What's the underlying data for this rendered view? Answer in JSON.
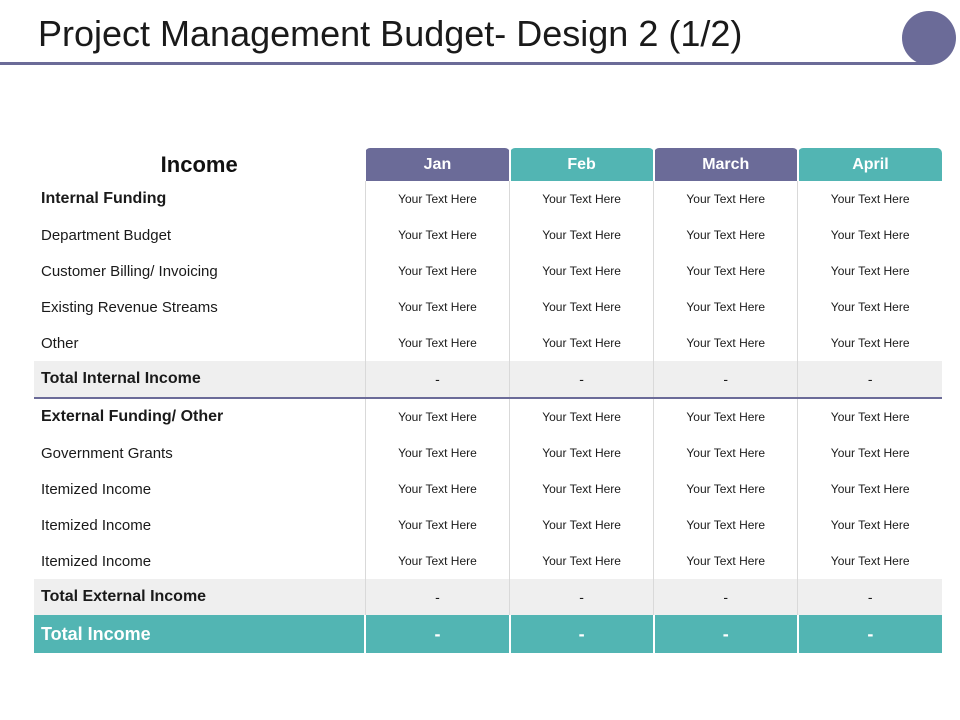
{
  "slide": {
    "title": "Project Management Budget- Design 2 (1/2)"
  },
  "table": {
    "header_label": "Income",
    "months": [
      "Jan",
      "Feb",
      "March",
      "April"
    ],
    "rows": [
      {
        "label": "Internal Funding",
        "values": [
          "Your Text Here",
          "Your Text Here",
          "Your Text Here",
          "Your Text Here"
        ]
      },
      {
        "label": "Department Budget",
        "values": [
          "Your Text Here",
          "Your Text Here",
          "Your Text Here",
          "Your Text Here"
        ]
      },
      {
        "label": "Customer Billing/ Invoicing",
        "values": [
          "Your Text Here",
          "Your Text Here",
          "Your Text Here",
          "Your Text Here"
        ]
      },
      {
        "label": "Existing Revenue Streams",
        "values": [
          "Your Text Here",
          "Your Text Here",
          "Your Text Here",
          "Your Text Here"
        ]
      },
      {
        "label": "Other",
        "values": [
          "Your Text Here",
          "Your Text Here",
          "Your Text Here",
          "Your Text Here"
        ]
      },
      {
        "label": "Total Internal Income",
        "values": [
          "-",
          "-",
          "-",
          "-"
        ]
      },
      {
        "label": "External Funding/ Other",
        "values": [
          "Your Text Here",
          "Your Text Here",
          "Your Text Here",
          "Your Text Here"
        ]
      },
      {
        "label": "Government Grants",
        "values": [
          "Your Text Here",
          "Your Text Here",
          "Your Text Here",
          "Your Text Here"
        ]
      },
      {
        "label": "Itemized Income",
        "values": [
          "Your Text Here",
          "Your Text Here",
          "Your Text Here",
          "Your Text Here"
        ]
      },
      {
        "label": "Itemized Income",
        "values": [
          "Your Text Here",
          "Your Text Here",
          "Your Text Here",
          "Your Text Here"
        ]
      },
      {
        "label": "Itemized Income",
        "values": [
          "Your Text Here",
          "Your Text Here",
          "Your Text Here",
          "Your Text Here"
        ]
      },
      {
        "label": "Total External Income",
        "values": [
          "-",
          "-",
          "-",
          "-"
        ]
      }
    ],
    "grand_total": {
      "label": "Total Income",
      "values": [
        "-",
        "-",
        "-",
        "-"
      ]
    }
  },
  "colors": {
    "purple": "#6b6b98",
    "teal": "#52b5b3",
    "total_row_bg": "#efefef"
  }
}
